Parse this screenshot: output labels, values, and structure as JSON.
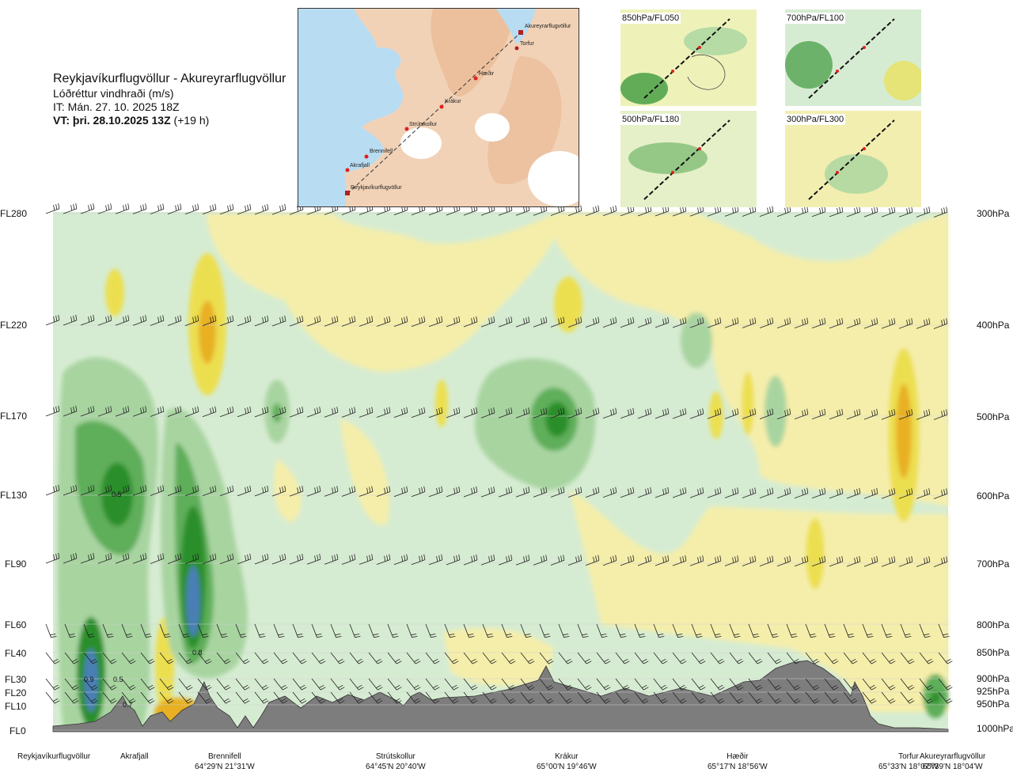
{
  "header": {
    "title": "Reykjavíkurflugvöllur - Akureyrarflugvöllur",
    "subtitle": "Lóðréttur vindhraði (m/s)",
    "it_line": "IT: Mán. 27. 10. 2025 18Z",
    "vt_bold": "VT: þri. 28.10.2025 13Z",
    "vt_rest": " (+19 h)"
  },
  "overview_map": {
    "route_points": [
      "Akureyrarflugvöllur",
      "Torfur",
      "Hæðir",
      "Krákur",
      "Strútskollur",
      "Brennifell",
      "Akrafjall",
      "Reykjavíkurflugvöllur"
    ]
  },
  "mini_maps": [
    {
      "label": "850hPa/FL050"
    },
    {
      "label": "700hPa/FL100"
    },
    {
      "label": "500hPa/FL180"
    },
    {
      "label": "300hPa/FL300"
    }
  ],
  "chart_data": {
    "type": "heatmap",
    "title": "Lóðréttur vindhraði (m/s)",
    "variable": "vertical wind speed (m/s)",
    "y_axis_left": [
      "FL280",
      "FL220",
      "FL170",
      "FL130",
      "FL90",
      "FL60",
      "FL40",
      "FL30",
      "FL20",
      "FL10",
      "FL0"
    ],
    "y_axis_right": [
      "300hPa",
      "400hPa",
      "500hPa",
      "600hPa",
      "700hPa",
      "800hPa",
      "850hPa",
      "900hPa",
      "925hPa",
      "950hPa",
      "1000hPa"
    ],
    "x_locations": [
      {
        "name": "Reykjavíkurflugvöllur",
        "coord": ""
      },
      {
        "name": "Akrafjall",
        "coord": ""
      },
      {
        "name": "Brennifell",
        "coord": "64°29'N 21°31'W"
      },
      {
        "name": "Strútskollur",
        "coord": "64°45'N 20°40'W"
      },
      {
        "name": "Krákur",
        "coord": "65°00'N 19°46'W"
      },
      {
        "name": "Hæðir",
        "coord": "65°17'N 18°56'W"
      },
      {
        "name": "Torfur",
        "coord": "65°33'N 18°07'W"
      },
      {
        "name": "Akureyrarflugvöllur",
        "coord": "65°39'N 18°04'W"
      }
    ],
    "contour_labels": [
      {
        "value": "0.5",
        "near": "Akrafjall",
        "level": "FL130"
      },
      {
        "value": "0.8",
        "near": "Brennifell",
        "level": "FL40"
      },
      {
        "value": "0.9",
        "near": "Reykjavíkurflugvöllur",
        "level": "FL30"
      },
      {
        "value": "0.5",
        "near": "Akrafjall",
        "level": "FL30"
      },
      {
        "value": "0.7",
        "near": "Akrafjall",
        "level": "FL10"
      }
    ],
    "colors": {
      "up_weak": "#d6ecd2",
      "up_mod": "#a8d4a0",
      "up_strong": "#5fae5a",
      "up_very": "#2a8f2a",
      "up_max": "#4a7fb5",
      "down_weak": "#f5eeaa",
      "down_mod": "#ecdf50",
      "down_strong": "#e8b020",
      "down_max": "#a05010",
      "neutral": "#fffde8",
      "terrain": "#7d7d7d"
    }
  }
}
